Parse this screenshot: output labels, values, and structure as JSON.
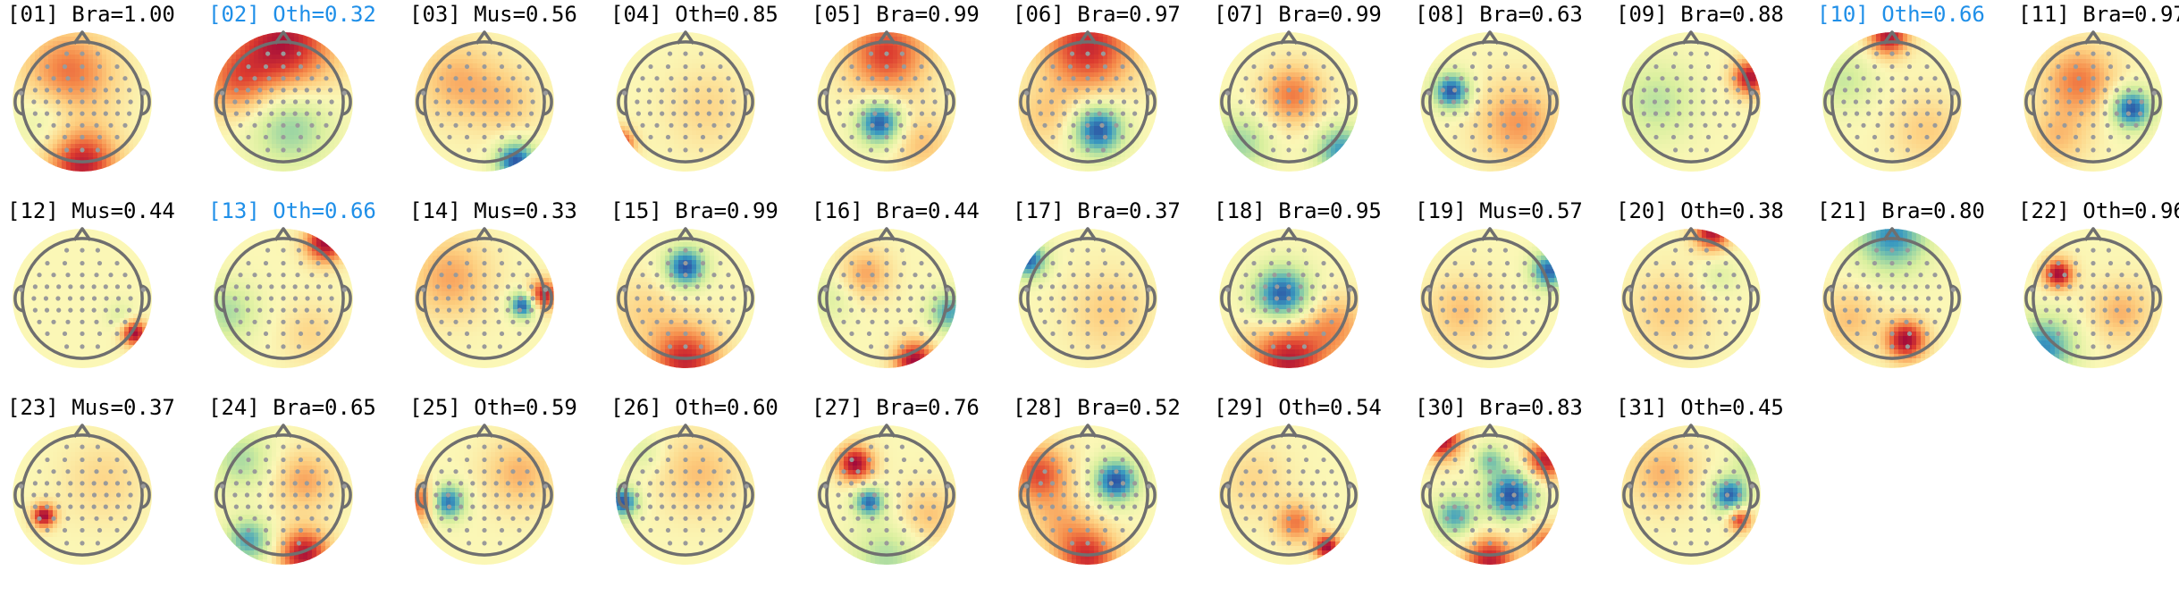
{
  "colors": {
    "label_default": "#000000",
    "label_rejected": "#1f8fe8",
    "colormap": [
      "#2c55a5",
      "#3b9bc0",
      "#8fd0a4",
      "#d8ef9e",
      "#fbf7b6",
      "#fdcf80",
      "#f58b4a",
      "#dc3b2f",
      "#a40c3a"
    ],
    "head_outline": "#6f6f6f",
    "sensor_dot": "#9a9a9a"
  },
  "components": [
    {
      "label": "[01] Bra=1.00",
      "rejected": false,
      "pos": [
        [
          -0.2,
          -0.4,
          0.6,
          0.45
        ],
        [
          0.0,
          0.9,
          0.9,
          0.35
        ],
        [
          -0.5,
          0.2,
          -0.25,
          0.35
        ]
      ]
    },
    {
      "label": "[02] Oth=0.32",
      "rejected": true,
      "pos": [
        [
          0.0,
          -0.85,
          0.95,
          0.5
        ],
        [
          -0.7,
          -0.3,
          0.5,
          0.35
        ],
        [
          0.1,
          0.35,
          -0.5,
          0.4
        ]
      ]
    },
    {
      "label": "[03] Mus=0.56",
      "rejected": false,
      "pos": [
        [
          0.45,
          0.85,
          -1.0,
          0.2
        ],
        [
          -0.4,
          -0.3,
          0.35,
          0.4
        ],
        [
          0.3,
          0.0,
          0.25,
          0.35
        ]
      ]
    },
    {
      "label": "[04] Oth=0.85",
      "rejected": false,
      "pos": [
        [
          -0.95,
          0.6,
          0.85,
          0.15
        ],
        [
          0.3,
          0.1,
          0.2,
          0.4
        ]
      ]
    },
    {
      "label": "[05] Bra=0.99",
      "rejected": false,
      "pos": [
        [
          0.0,
          -0.7,
          0.75,
          0.4
        ],
        [
          -0.1,
          0.3,
          -1.0,
          0.22
        ],
        [
          0.5,
          0.6,
          0.3,
          0.3
        ]
      ]
    },
    {
      "label": "[06] Bra=0.97",
      "rejected": false,
      "pos": [
        [
          0.0,
          -0.8,
          0.85,
          0.45
        ],
        [
          0.15,
          0.4,
          -1.0,
          0.25
        ],
        [
          -0.6,
          0.2,
          0.25,
          0.3
        ]
      ]
    },
    {
      "label": "[07] Bra=0.99",
      "rejected": false,
      "pos": [
        [
          0.05,
          -0.1,
          0.55,
          0.3
        ],
        [
          -0.7,
          0.6,
          -0.45,
          0.3
        ],
        [
          0.75,
          0.7,
          -0.75,
          0.25
        ]
      ]
    },
    {
      "label": "[08] Bra=0.63",
      "rejected": false,
      "pos": [
        [
          -0.55,
          -0.15,
          -1.0,
          0.18
        ],
        [
          0.4,
          0.3,
          0.45,
          0.4
        ]
      ]
    },
    {
      "label": "[09] Bra=0.88",
      "rejected": false,
      "pos": [
        [
          0.85,
          -0.35,
          0.95,
          0.18
        ],
        [
          -0.5,
          0.0,
          -0.35,
          0.4
        ]
      ]
    },
    {
      "label": "[10] Oth=0.66",
      "rejected": true,
      "pos": [
        [
          -0.05,
          -0.95,
          0.95,
          0.2
        ],
        [
          -0.7,
          -0.3,
          -0.3,
          0.3
        ],
        [
          0.5,
          0.4,
          0.25,
          0.35
        ]
      ]
    },
    {
      "label": "[11] Bra=0.97",
      "rejected": false,
      "pos": [
        [
          0.55,
          0.1,
          -1.0,
          0.2
        ],
        [
          -0.2,
          -0.3,
          0.55,
          0.35
        ],
        [
          -0.5,
          0.5,
          0.3,
          0.3
        ]
      ]
    },
    {
      "label": "[12] Mus=0.44",
      "rejected": false,
      "pos": [
        [
          0.75,
          0.5,
          1.0,
          0.13
        ],
        [
          0.55,
          0.25,
          -0.2,
          0.15
        ]
      ]
    },
    {
      "label": "[13] Oth=0.66",
      "rejected": true,
      "pos": [
        [
          0.6,
          -0.8,
          1.0,
          0.2
        ],
        [
          -0.8,
          0.2,
          -0.4,
          0.3
        ],
        [
          0.4,
          0.5,
          0.2,
          0.3
        ]
      ]
    },
    {
      "label": "[14] Mus=0.33",
      "rejected": false,
      "pos": [
        [
          0.55,
          0.1,
          -1.0,
          0.13
        ],
        [
          0.85,
          -0.05,
          0.9,
          0.15
        ],
        [
          -0.5,
          -0.3,
          0.4,
          0.4
        ]
      ]
    },
    {
      "label": "[15] Bra=0.99",
      "rejected": false,
      "pos": [
        [
          0.0,
          -0.45,
          -1.0,
          0.2
        ],
        [
          0.0,
          0.9,
          0.85,
          0.35
        ],
        [
          -0.6,
          0.2,
          0.2,
          0.35
        ]
      ]
    },
    {
      "label": "[16] Bra=0.44",
      "rejected": false,
      "pos": [
        [
          0.4,
          0.9,
          1.0,
          0.2
        ],
        [
          -0.3,
          -0.35,
          0.4,
          0.25
        ],
        [
          0.9,
          0.2,
          -0.7,
          0.2
        ],
        [
          -0.8,
          0.0,
          -0.2,
          0.25
        ]
      ]
    },
    {
      "label": "[17] Bra=0.37",
      "rejected": false,
      "pos": [
        [
          -0.85,
          -0.55,
          -0.95,
          0.18
        ],
        [
          0.3,
          0.2,
          0.25,
          0.4
        ]
      ]
    },
    {
      "label": "[18] Bra=0.95",
      "rejected": false,
      "pos": [
        [
          -0.1,
          -0.05,
          -1.0,
          0.28
        ],
        [
          0.0,
          0.9,
          0.9,
          0.4
        ],
        [
          0.7,
          0.4,
          0.4,
          0.3
        ]
      ]
    },
    {
      "label": "[19] Mus=0.57",
      "rejected": false,
      "pos": [
        [
          0.85,
          -0.4,
          -0.95,
          0.18
        ],
        [
          -0.4,
          0.2,
          0.3,
          0.35
        ]
      ]
    },
    {
      "label": "[20] Oth=0.38",
      "rejected": false,
      "pos": [
        [
          0.3,
          -0.95,
          0.95,
          0.18
        ],
        [
          -0.3,
          0.2,
          0.25,
          0.4
        ],
        [
          0.4,
          -0.3,
          -0.2,
          0.2
        ]
      ]
    },
    {
      "label": "[21] Bra=0.80",
      "rejected": false,
      "pos": [
        [
          0.2,
          0.6,
          1.0,
          0.2
        ],
        [
          0.0,
          -0.9,
          -0.8,
          0.35
        ],
        [
          -0.6,
          0.3,
          0.3,
          0.3
        ]
      ]
    },
    {
      "label": "[22] Oth=0.96",
      "rejected": false,
      "pos": [
        [
          -0.5,
          -0.35,
          1.0,
          0.15
        ],
        [
          -0.7,
          0.7,
          -0.8,
          0.3
        ],
        [
          0.4,
          0.2,
          0.35,
          0.3
        ]
      ]
    },
    {
      "label": "[23] Mus=0.37",
      "rejected": false,
      "pos": [
        [
          -0.55,
          0.3,
          1.0,
          0.12
        ],
        [
          0.3,
          -0.2,
          0.2,
          0.4
        ]
      ]
    },
    {
      "label": "[24] Bra=0.65",
      "rejected": false,
      "pos": [
        [
          0.3,
          0.85,
          0.95,
          0.25
        ],
        [
          -0.5,
          0.65,
          -0.7,
          0.22
        ],
        [
          -0.6,
          -0.5,
          -0.4,
          0.3
        ],
        [
          0.3,
          -0.2,
          0.4,
          0.3
        ]
      ]
    },
    {
      "label": "[25] Oth=0.59",
      "rejected": false,
      "pos": [
        [
          -0.55,
          0.1,
          -1.0,
          0.18
        ],
        [
          -0.9,
          0.1,
          0.7,
          0.2
        ],
        [
          0.5,
          -0.3,
          0.35,
          0.35
        ]
      ]
    },
    {
      "label": "[26] Oth=0.60",
      "rejected": false,
      "pos": [
        [
          -0.9,
          0.1,
          -1.0,
          0.15
        ],
        [
          0.2,
          -0.3,
          0.3,
          0.4
        ],
        [
          -0.6,
          -0.6,
          -0.2,
          0.2
        ]
      ]
    },
    {
      "label": "[27] Bra=0.76",
      "rejected": false,
      "pos": [
        [
          -0.45,
          -0.45,
          1.0,
          0.18
        ],
        [
          -0.25,
          0.1,
          -0.9,
          0.15
        ],
        [
          0.0,
          0.9,
          -0.4,
          0.35
        ],
        [
          0.6,
          0.3,
          0.3,
          0.3
        ]
      ]
    },
    {
      "label": "[28] Bra=0.52",
      "rejected": false,
      "pos": [
        [
          0.4,
          -0.2,
          -1.0,
          0.22
        ],
        [
          -0.7,
          -0.3,
          0.7,
          0.3
        ],
        [
          0.0,
          0.9,
          0.8,
          0.3
        ],
        [
          -0.4,
          0.4,
          0.3,
          0.3
        ]
      ]
    },
    {
      "label": "[29] Oth=0.54",
      "rejected": false,
      "pos": [
        [
          0.55,
          0.75,
          1.0,
          0.13
        ],
        [
          0.1,
          0.4,
          0.55,
          0.2
        ],
        [
          -0.5,
          -0.2,
          0.2,
          0.35
        ]
      ]
    },
    {
      "label": "[30] Bra=0.83",
      "rejected": false,
      "pos": [
        [
          0.3,
          0.0,
          -1.0,
          0.25
        ],
        [
          -0.5,
          0.3,
          -0.7,
          0.2
        ],
        [
          -0.7,
          -0.8,
          1.0,
          0.2
        ],
        [
          0.8,
          -0.5,
          0.9,
          0.2
        ],
        [
          0.0,
          0.95,
          0.9,
          0.25
        ],
        [
          0.8,
          0.7,
          0.6,
          0.2
        ],
        [
          0.0,
          -0.5,
          -0.5,
          0.15
        ]
      ]
    },
    {
      "label": "[31] Oth=0.45",
      "rejected": false,
      "pos": [
        [
          0.55,
          0.0,
          -0.95,
          0.18
        ],
        [
          0.7,
          0.35,
          0.8,
          0.12
        ],
        [
          -0.4,
          -0.3,
          0.35,
          0.35
        ],
        [
          0.85,
          -0.5,
          -0.3,
          0.2
        ]
      ]
    }
  ]
}
